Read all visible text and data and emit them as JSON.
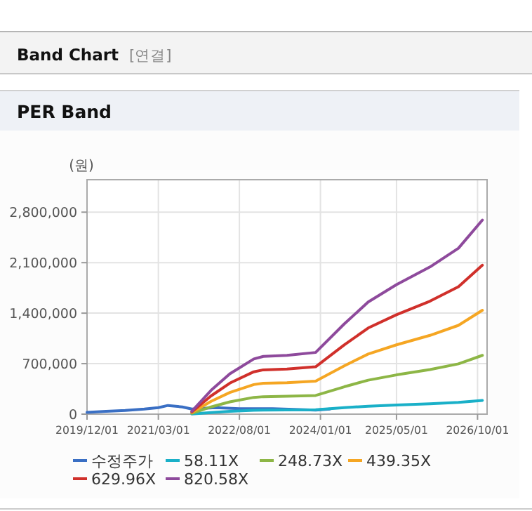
{
  "chart_data": {
    "type": "line",
    "title": "PER Band",
    "annotations": [
      "Band Chart",
      "[연결]"
    ],
    "ylabel": "(원)",
    "xlim": [
      "2019-12-01",
      "2026-12-01"
    ],
    "xticks": [
      {
        "value": "2019-12-01",
        "label": "2019/12/01"
      },
      {
        "value": "2021-03-01",
        "label": "2021/03/01"
      },
      {
        "value": "2022-08-01",
        "label": "2022/08/01"
      },
      {
        "value": "2024-01-01",
        "label": "2024/01/01"
      },
      {
        "value": "2025-05-01",
        "label": "2025/05/01"
      },
      {
        "value": "2026-10-01",
        "label": "2026/10/01"
      }
    ],
    "ylim": [
      0,
      3250000
    ],
    "yticks": [
      0,
      {
        "value": 700000,
        "label": "700,000"
      },
      {
        "value": 1400000,
        "label": "1,400,000"
      },
      {
        "value": 2100000,
        "label": "2,100,000"
      },
      {
        "value": 2800000,
        "label": "2,800,000"
      }
    ],
    "grid": true,
    "legend": "bottom",
    "marker": "none",
    "line_style": "solid",
    "series": [
      {
        "name": "수정주가",
        "color": "#3a6fc4",
        "x": [
          "2019-12-01",
          "2020-04-01",
          "2020-08-01",
          "2020-12-01",
          "2021-03-01",
          "2021-05-01",
          "2021-08-01",
          "2021-10-01",
          "2022-03-01",
          "2022-08-01",
          "2023-03-01",
          "2023-12-01",
          "2024-03-01"
        ],
        "values": [
          25000,
          40000,
          50000,
          70000,
          90000,
          120000,
          100000,
          70000,
          90000,
          75000,
          75000,
          55000,
          70000
        ]
      },
      {
        "name": "58.11X",
        "color": "#1ab0c8",
        "x": [
          "2021-10-01",
          "2022-02-01",
          "2022-06-01",
          "2022-11-01",
          "2023-01-01",
          "2023-06-01",
          "2023-12-01",
          "2024-06-01",
          "2024-11-01",
          "2025-05-01",
          "2025-12-01",
          "2026-06-01",
          "2026-11-01"
        ],
        "values": [
          3000,
          23000,
          40000,
          54000,
          57000,
          58000,
          61000,
          89000,
          110000,
          127000,
          144000,
          163000,
          190000
        ]
      },
      {
        "name": "248.73X",
        "color": "#8db646",
        "x": [
          "2021-10-01",
          "2022-02-01",
          "2022-06-01",
          "2022-11-01",
          "2023-01-01",
          "2023-06-01",
          "2023-12-01",
          "2024-06-01",
          "2024-11-01",
          "2025-05-01",
          "2025-12-01",
          "2026-06-01",
          "2026-11-01"
        ],
        "values": [
          12000,
          100000,
          170000,
          232000,
          242000,
          247000,
          259000,
          379000,
          471000,
          544000,
          618000,
          697000,
          815000
        ]
      },
      {
        "name": "439.35X",
        "color": "#f5a623",
        "x": [
          "2021-10-01",
          "2022-02-01",
          "2022-06-01",
          "2022-11-01",
          "2023-01-01",
          "2023-06-01",
          "2023-12-01",
          "2024-06-01",
          "2024-11-01",
          "2025-05-01",
          "2025-12-01",
          "2026-06-01",
          "2026-11-01"
        ],
        "values": [
          21000,
          177000,
          300000,
          410000,
          428000,
          436000,
          458000,
          669000,
          833000,
          961000,
          1092000,
          1231000,
          1440000
        ]
      },
      {
        "name": "629.96X",
        "color": "#d0302b",
        "x": [
          "2021-10-01",
          "2022-02-01",
          "2022-06-01",
          "2022-11-01",
          "2023-01-01",
          "2023-06-01",
          "2023-12-01",
          "2024-06-01",
          "2024-11-01",
          "2025-05-01",
          "2025-12-01",
          "2026-06-01",
          "2026-11-01"
        ],
        "values": [
          31000,
          253000,
          430000,
          587000,
          614000,
          626000,
          656000,
          960000,
          1194000,
          1378000,
          1566000,
          1766000,
          2065000
        ]
      },
      {
        "name": "820.58X",
        "color": "#8e4a9c",
        "x": [
          "2021-10-01",
          "2022-02-01",
          "2022-06-01",
          "2022-11-01",
          "2023-01-01",
          "2023-06-01",
          "2023-12-01",
          "2024-06-01",
          "2024-11-01",
          "2025-05-01",
          "2025-12-01",
          "2026-06-01",
          "2026-11-01"
        ],
        "values": [
          40000,
          330000,
          560000,
          765000,
          800000,
          815000,
          855000,
          1250000,
          1555000,
          1795000,
          2040000,
          2300000,
          2690000
        ]
      }
    ]
  }
}
